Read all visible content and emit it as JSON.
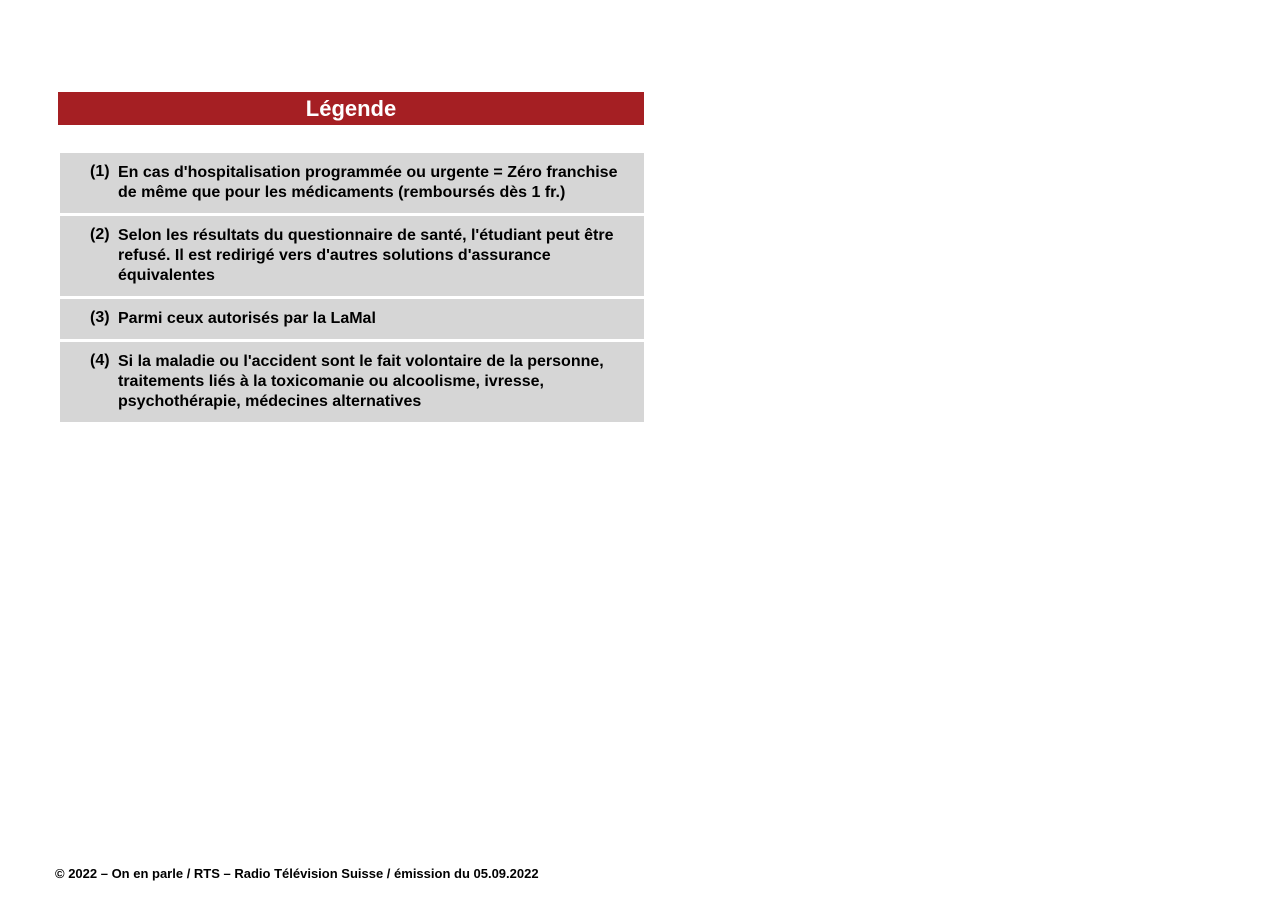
{
  "header": {
    "title": "Légende",
    "bg_color": "#a51f23",
    "text_color": "#ffffff"
  },
  "legend": {
    "item_bg_color": "#d6d6d6",
    "text_color": "#000000",
    "items": [
      {
        "num": "(1)",
        "text": "En cas d'hospitalisation programmée ou urgente = Zéro franchise de même que pour les médicaments (remboursés dès 1 fr.)"
      },
      {
        "num": "(2)",
        "text": "Selon les résultats du questionnaire de santé, l'étudiant peut être refusé. Il est redirigé vers d'autres solutions d'assurance équivalentes"
      },
      {
        "num": "(3)",
        "text": "Parmi ceux autorisés par la LaMal"
      },
      {
        "num": "(4)",
        "text": "Si la maladie ou l'accident sont le fait volontaire de la personne, traitements liés à la toxicomanie ou alcoolisme, ivresse, psychothérapie, médecines alternatives"
      }
    ]
  },
  "footer": {
    "text": "© 2022 – On en parle / RTS – Radio Télévision Suisse / émission du 05.09.2022",
    "text_color": "#000000"
  }
}
